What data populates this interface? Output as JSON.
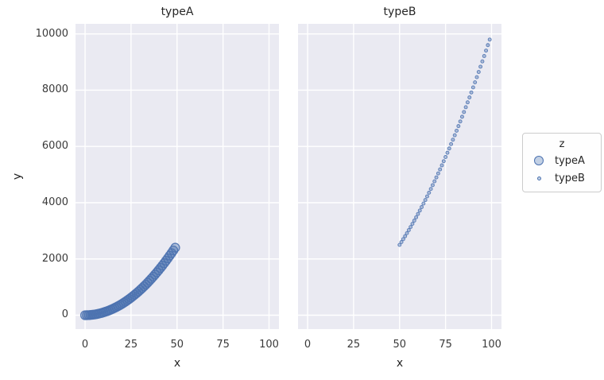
{
  "chart_data": {
    "type": "scatter",
    "facets": [
      {
        "title": "typeA",
        "series": "typeA"
      },
      {
        "title": "typeB",
        "series": "typeB"
      }
    ],
    "series": [
      {
        "name": "typeA",
        "marker_diameter_px": 11,
        "points": [
          [
            0,
            0
          ],
          [
            1,
            1
          ],
          [
            2,
            4
          ],
          [
            3,
            9
          ],
          [
            4,
            16
          ],
          [
            5,
            25
          ],
          [
            6,
            36
          ],
          [
            7,
            49
          ],
          [
            8,
            64
          ],
          [
            9,
            81
          ],
          [
            10,
            100
          ],
          [
            11,
            121
          ],
          [
            12,
            144
          ],
          [
            13,
            169
          ],
          [
            14,
            196
          ],
          [
            15,
            225
          ],
          [
            16,
            256
          ],
          [
            17,
            289
          ],
          [
            18,
            324
          ],
          [
            19,
            361
          ],
          [
            20,
            400
          ],
          [
            21,
            441
          ],
          [
            22,
            484
          ],
          [
            23,
            529
          ],
          [
            24,
            576
          ],
          [
            25,
            625
          ],
          [
            26,
            676
          ],
          [
            27,
            729
          ],
          [
            28,
            784
          ],
          [
            29,
            841
          ],
          [
            30,
            900
          ],
          [
            31,
            961
          ],
          [
            32,
            1024
          ],
          [
            33,
            1089
          ],
          [
            34,
            1156
          ],
          [
            35,
            1225
          ],
          [
            36,
            1296
          ],
          [
            37,
            1369
          ],
          [
            38,
            1444
          ],
          [
            39,
            1521
          ],
          [
            40,
            1600
          ],
          [
            41,
            1681
          ],
          [
            42,
            1764
          ],
          [
            43,
            1849
          ],
          [
            44,
            1936
          ],
          [
            45,
            2025
          ],
          [
            46,
            2116
          ],
          [
            47,
            2209
          ],
          [
            48,
            2304
          ],
          [
            49,
            2401
          ]
        ]
      },
      {
        "name": "typeB",
        "marker_diameter_px": 4,
        "points": [
          [
            50,
            2500
          ],
          [
            51,
            2601
          ],
          [
            52,
            2704
          ],
          [
            53,
            2809
          ],
          [
            54,
            2916
          ],
          [
            55,
            3025
          ],
          [
            56,
            3136
          ],
          [
            57,
            3249
          ],
          [
            58,
            3364
          ],
          [
            59,
            3481
          ],
          [
            60,
            3600
          ],
          [
            61,
            3721
          ],
          [
            62,
            3844
          ],
          [
            63,
            3969
          ],
          [
            64,
            4096
          ],
          [
            65,
            4225
          ],
          [
            66,
            4356
          ],
          [
            67,
            4489
          ],
          [
            68,
            4624
          ],
          [
            69,
            4761
          ],
          [
            70,
            4900
          ],
          [
            71,
            5041
          ],
          [
            72,
            5184
          ],
          [
            73,
            5329
          ],
          [
            74,
            5476
          ],
          [
            75,
            5625
          ],
          [
            76,
            5776
          ],
          [
            77,
            5929
          ],
          [
            78,
            6084
          ],
          [
            79,
            6241
          ],
          [
            80,
            6400
          ],
          [
            81,
            6561
          ],
          [
            82,
            6724
          ],
          [
            83,
            6889
          ],
          [
            84,
            7056
          ],
          [
            85,
            7225
          ],
          [
            86,
            7396
          ],
          [
            87,
            7569
          ],
          [
            88,
            7744
          ],
          [
            89,
            7921
          ],
          [
            90,
            8100
          ],
          [
            91,
            8281
          ],
          [
            92,
            8464
          ],
          [
            93,
            8649
          ],
          [
            94,
            8836
          ],
          [
            95,
            9025
          ],
          [
            96,
            9216
          ],
          [
            97,
            9409
          ],
          [
            98,
            9604
          ],
          [
            99,
            9801
          ]
        ]
      }
    ],
    "xlabel": "x",
    "ylabel": "y",
    "x_ticks": [
      0,
      25,
      50,
      75,
      100
    ],
    "y_ticks": [
      0,
      2000,
      4000,
      6000,
      8000,
      10000
    ],
    "xlim": [
      -5.2,
      105.4
    ],
    "ylim": [
      -495,
      10360
    ],
    "grid": true,
    "legend": {
      "title": "z",
      "position": "right",
      "entries": [
        {
          "label": "typeA",
          "marker": "large"
        },
        {
          "label": "typeB",
          "marker": "small"
        }
      ]
    },
    "colors": {
      "marker_edge": "#4c72b0",
      "marker_fill": "rgba(76,114,176,0.4)",
      "panel_bg": "#eaeaf2",
      "grid": "#ffffff",
      "text": "#262626"
    }
  }
}
